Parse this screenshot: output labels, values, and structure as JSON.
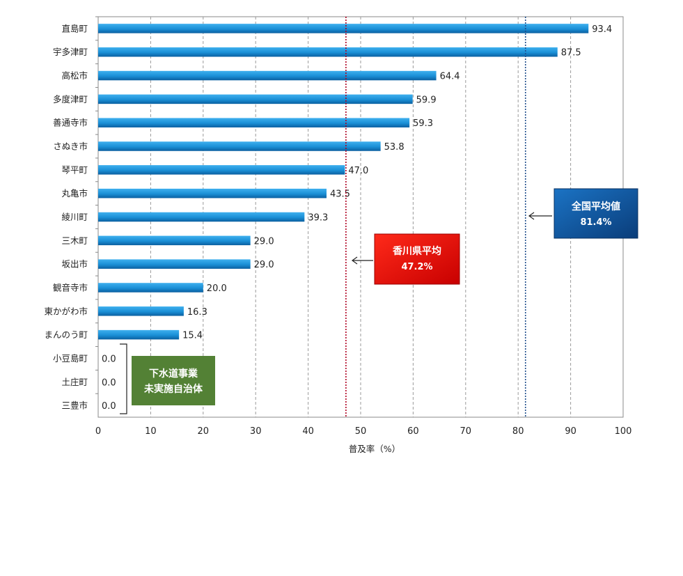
{
  "chart_data": {
    "type": "bar",
    "orientation": "horizontal",
    "categories": [
      "直島町",
      "宇多津町",
      "高松市",
      "多度津町",
      "善通寺市",
      "さぬき市",
      "琴平町",
      "丸亀市",
      "綾川町",
      "三木町",
      "坂出市",
      "観音寺市",
      "東かがわ市",
      "まんのう町",
      "小豆島町",
      "土庄町",
      "三豊市"
    ],
    "values": [
      93.4,
      87.5,
      64.4,
      59.9,
      59.3,
      53.8,
      47.0,
      43.5,
      39.3,
      29.0,
      29.0,
      20.0,
      16.3,
      15.4,
      0.0,
      0.0,
      0.0
    ],
    "value_labels": [
      "93.4",
      "87.5",
      "64.4",
      "59.9",
      "59.3",
      "53.8",
      "47.0",
      "43.5",
      "39.3",
      "29.0",
      "29.0",
      "20.0",
      "16.3",
      "15.4",
      "0.0",
      "0.0",
      "0.0"
    ],
    "xlabel": "普及率（%）",
    "xlim": [
      0,
      100
    ],
    "xticks": [
      0,
      10,
      20,
      30,
      40,
      50,
      60,
      70,
      80,
      90,
      100
    ],
    "grid": "vertical dashed",
    "bar_color": "#1a8fd6",
    "reference_lines": [
      {
        "label": "香川県平均",
        "value_text": "47.2%",
        "value": 47.2,
        "color": "#b00020",
        "box_color": "#e00000"
      },
      {
        "label": "全国平均値",
        "value_text": "81.4%",
        "value": 81.4,
        "color": "#1f4e8c",
        "box_color": "#0d5aa7"
      }
    ],
    "annotation": {
      "line1": "下水道事業",
      "line2": "未実施自治体",
      "color": "#538135"
    }
  }
}
